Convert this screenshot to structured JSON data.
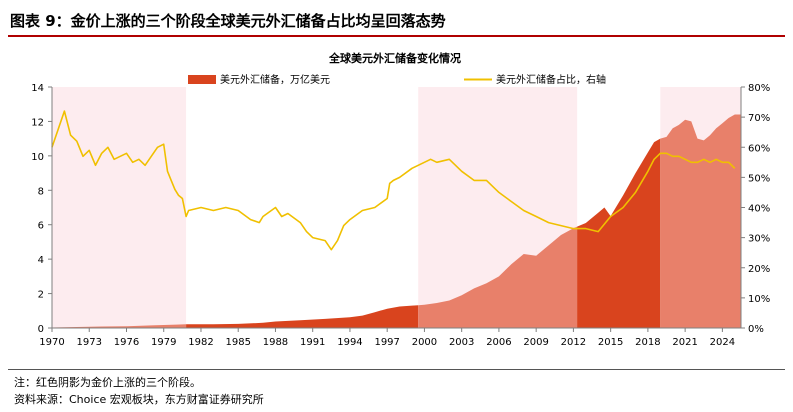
{
  "figure": {
    "title": "图表 9：金价上涨的三个阶段全球美元外汇储备占比均呈回落态势",
    "note": "注：红色阴影为金价上涨的三个阶段。",
    "source": "资料来源：Choice 宏观板块，东方财富证券研究所"
  },
  "colors": {
    "rule": "#b00000",
    "shade": "#fdecef",
    "area_dark": "#d9441e",
    "area_light": "#e8806a",
    "line": "#f0c000"
  },
  "chart_data": {
    "type": "area",
    "title": "全球美元外汇储备变化情况",
    "grid": false,
    "legend_position": "top-center",
    "x_ticks": [
      "1970",
      "1973",
      "1976",
      "1979",
      "1982",
      "1985",
      "1988",
      "1991",
      "1994",
      "1997",
      "2000",
      "2003",
      "2006",
      "2009",
      "2012",
      "2015",
      "2018",
      "2021",
      "2024"
    ],
    "y_left": {
      "range": [
        0,
        14
      ],
      "ticks": [
        "0",
        "2",
        "4",
        "6",
        "8",
        "10",
        "12",
        "14"
      ]
    },
    "y_right": {
      "range": [
        0,
        80
      ],
      "ticks": [
        "0%",
        "10%",
        "20%",
        "30%",
        "40%",
        "50%",
        "60%",
        "70%",
        "80%"
      ]
    },
    "shaded_periods": [
      [
        1970.0,
        1980.8
      ],
      [
        1999.5,
        2012.3
      ],
      [
        2019.0,
        2025.5
      ]
    ],
    "series": [
      {
        "name": "美元外汇储备，万亿美元",
        "type": "area",
        "axis": "left",
        "x": [
          1970,
          1972,
          1974,
          1976,
          1978,
          1980,
          1981,
          1983,
          1985,
          1987,
          1988,
          1990,
          1992,
          1994,
          1995,
          1996,
          1997,
          1998,
          1999,
          2000,
          2001,
          2002,
          2003,
          2004,
          2005,
          2006,
          2007,
          2008,
          2009,
          2010,
          2011,
          2012,
          2013,
          2014,
          2014.5,
          2015,
          2016,
          2017,
          2018,
          2018.5,
          2019,
          2019.5,
          2020,
          2020.5,
          2021,
          2021.5,
          2022,
          2022.5,
          2023,
          2023.5,
          2024,
          2024.5,
          2025
        ],
        "y": [
          0.03,
          0.06,
          0.09,
          0.1,
          0.15,
          0.2,
          0.22,
          0.22,
          0.24,
          0.3,
          0.38,
          0.45,
          0.53,
          0.62,
          0.72,
          0.92,
          1.12,
          1.25,
          1.3,
          1.35,
          1.45,
          1.6,
          1.9,
          2.3,
          2.6,
          3.0,
          3.7,
          4.3,
          4.2,
          4.8,
          5.4,
          5.8,
          6.1,
          6.7,
          7.0,
          6.5,
          7.7,
          9.0,
          10.2,
          10.8,
          11.0,
          11.1,
          11.6,
          11.8,
          12.1,
          12.0,
          11.0,
          10.9,
          11.2,
          11.6,
          11.9,
          12.2,
          12.4
        ]
      },
      {
        "name": "美元外汇储备占比，右轴",
        "type": "line",
        "axis": "right",
        "x": [
          1970,
          1970.5,
          1971,
          1971.5,
          1972,
          1972.5,
          1973,
          1973.5,
          1974,
          1974.5,
          1975,
          1976,
          1976.5,
          1977,
          1977.5,
          1978,
          1978.5,
          1979,
          1979.3,
          1979.6,
          1979.9,
          1980.2,
          1980.5,
          1980.8,
          1981,
          1982,
          1983,
          1984,
          1985,
          1986,
          1986.7,
          1987,
          1988,
          1988.5,
          1989,
          1990,
          1990.5,
          1991,
          1992,
          1992.5,
          1993,
          1993.5,
          1994,
          1995,
          1996,
          1997,
          1997.2,
          1997.5,
          1998,
          1999,
          1999.5,
          2000,
          2000.5,
          2001,
          2002,
          2003,
          2004,
          2005,
          2006,
          2007,
          2008,
          2009,
          2010,
          2011,
          2012,
          2013,
          2014,
          2015,
          2016,
          2017,
          2018,
          2018.5,
          2019,
          2019.5,
          2020,
          2020.5,
          2021,
          2021.5,
          2022,
          2022.5,
          2023,
          2023.5,
          2024,
          2024.5,
          2025
        ],
        "y": [
          60,
          66,
          72,
          64,
          62,
          57,
          59,
          54,
          58,
          60,
          56,
          58,
          55,
          56,
          54,
          57,
          60,
          61,
          52,
          49,
          46,
          44,
          43,
          37,
          39,
          40,
          39,
          40,
          39,
          36,
          35,
          37,
          40,
          37,
          38,
          35,
          32,
          30,
          29,
          26,
          29,
          34,
          36,
          39,
          40,
          43,
          48,
          49,
          50,
          53,
          54,
          55,
          56,
          55,
          56,
          52,
          49,
          49,
          45,
          42,
          39,
          37,
          35,
          34,
          33,
          33,
          32,
          37,
          40,
          45,
          52,
          56,
          58,
          58,
          57,
          57,
          56,
          55,
          55,
          56,
          55,
          56,
          55,
          55,
          53
        ]
      }
    ]
  }
}
